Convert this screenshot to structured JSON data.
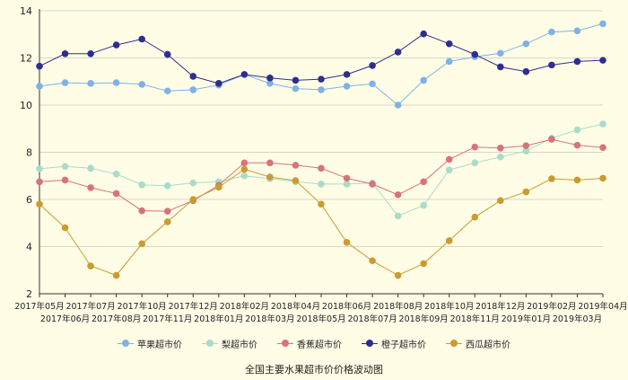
{
  "chart_data": {
    "type": "line",
    "title": "全国主要水果超市价价格波动图",
    "xlabel": "",
    "ylabel": "",
    "ylim": [
      2,
      14
    ],
    "yticks": [
      2,
      4,
      6,
      8,
      10,
      12,
      14
    ],
    "grid": "horizontal",
    "legend_position": "bottom",
    "x": [
      "2017年05月",
      "2017年06月",
      "2017年07月",
      "2017年08月",
      "2017年10月",
      "2017年11月",
      "2017年12月",
      "2018年01月",
      "2018年02月",
      "2018年03月",
      "2018年04月",
      "2018年05月",
      "2018年06月",
      "2018年07月",
      "2018年08月",
      "2018年09月",
      "2018年10月",
      "2018年11月",
      "2018年12月",
      "2019年01月",
      "2019年02月",
      "2019年03月",
      "2019年04月"
    ],
    "series": [
      {
        "name": "苹果超市价",
        "color": "#7fb2e5",
        "values": [
          10.8,
          10.95,
          10.92,
          10.95,
          10.88,
          10.6,
          10.65,
          10.85,
          11.3,
          10.92,
          10.7,
          10.65,
          10.8,
          10.9,
          10.0,
          11.05,
          11.85,
          12.05,
          12.2,
          12.6,
          13.1,
          13.15,
          13.45
        ]
      },
      {
        "name": "梨超市价",
        "color": "#a8dcc8",
        "values": [
          7.3,
          7.4,
          7.32,
          7.08,
          6.62,
          6.58,
          6.7,
          6.75,
          7.0,
          6.88,
          6.75,
          6.65,
          6.65,
          6.7,
          5.3,
          5.75,
          7.25,
          7.55,
          7.8,
          8.05,
          8.6,
          8.95,
          9.2
        ]
      },
      {
        "name": "香蕉超市价",
        "color": "#d9727b",
        "values": [
          6.75,
          6.82,
          6.5,
          6.25,
          5.52,
          5.5,
          5.95,
          6.6,
          7.55,
          7.55,
          7.45,
          7.32,
          6.9,
          6.65,
          6.2,
          6.75,
          7.7,
          8.22,
          8.18,
          8.28,
          8.55,
          8.3,
          8.2
        ]
      },
      {
        "name": "橙子超市价",
        "color": "#2e2e8f",
        "values": [
          11.65,
          12.18,
          12.18,
          12.55,
          12.8,
          12.15,
          11.22,
          10.92,
          11.3,
          11.15,
          11.05,
          11.1,
          11.3,
          11.68,
          12.25,
          13.02,
          12.6,
          12.15,
          11.62,
          11.42,
          11.7,
          11.85,
          11.9
        ]
      },
      {
        "name": "西瓜超市价",
        "color": "#cc9a2e",
        "values": [
          5.8,
          4.8,
          3.18,
          2.78,
          4.12,
          5.05,
          6.0,
          6.52,
          7.28,
          6.95,
          6.8,
          5.8,
          4.18,
          3.4,
          2.78,
          3.28,
          4.25,
          5.25,
          5.95,
          6.32,
          6.88,
          6.82,
          6.9
        ]
      }
    ]
  }
}
